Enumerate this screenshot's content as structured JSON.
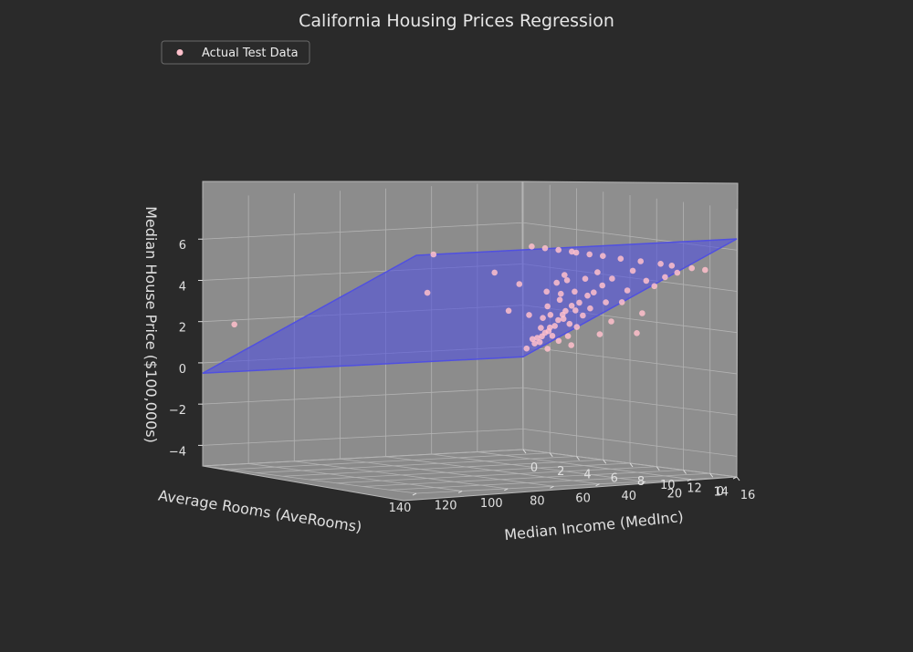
{
  "chart_data": {
    "type": "scatter",
    "title": "California Housing Prices Regression",
    "xlabel": "Median Income (MedInc)",
    "ylabel": "Average Rooms (AveRooms)",
    "zlabel": "Median House Price ($100,000s)",
    "x_ticks": [
      0,
      2,
      4,
      6,
      8,
      10,
      12,
      14,
      16
    ],
    "y_ticks": [
      0,
      20,
      40,
      60,
      80,
      100,
      120,
      140
    ],
    "z_ticks": [
      -4,
      -2,
      0,
      2,
      4,
      6
    ],
    "xlim": [
      0,
      16
    ],
    "ylim": [
      0,
      140
    ],
    "zlim": [
      -5,
      8
    ],
    "grid": true,
    "legend_position": "upper-left",
    "series": [
      {
        "name": "Actual Test Data",
        "color": "#ffc0cb",
        "marker": "circle",
        "note_points": "representative sample of the dense point cloud",
        "points": [
          [
            3.5,
            5.1,
            1.6
          ],
          [
            3.0,
            5.8,
            1.2
          ],
          [
            4.2,
            6.0,
            2.1
          ],
          [
            2.2,
            4.6,
            0.7
          ],
          [
            5.3,
            6.4,
            2.6
          ],
          [
            6.0,
            6.9,
            3.0
          ],
          [
            2.8,
            5.2,
            1.0
          ],
          [
            3.9,
            5.5,
            1.9
          ],
          [
            4.7,
            6.2,
            2.4
          ],
          [
            1.9,
            4.9,
            0.6
          ],
          [
            2.5,
            5.0,
            0.9
          ],
          [
            3.3,
            5.4,
            1.3
          ],
          [
            4.0,
            5.7,
            1.7
          ],
          [
            5.0,
            6.3,
            2.2
          ],
          [
            6.5,
            7.1,
            3.2
          ],
          [
            7.2,
            7.4,
            3.6
          ],
          [
            8.0,
            7.8,
            4.0
          ],
          [
            2.0,
            4.4,
            0.4
          ],
          [
            1.6,
            4.3,
            0.3
          ],
          [
            3.1,
            5.3,
            0.8
          ],
          [
            4.5,
            6.0,
            1.5
          ],
          [
            5.6,
            6.6,
            2.0
          ],
          [
            3.7,
            5.6,
            2.6
          ],
          [
            2.7,
            5.1,
            2.2
          ],
          [
            4.9,
            6.1,
            3.1
          ],
          [
            3.4,
            5.2,
            3.4
          ],
          [
            2.3,
            4.8,
            1.6
          ],
          [
            5.8,
            6.7,
            3.8
          ],
          [
            4.4,
            6.1,
            0.9
          ],
          [
            6.2,
            6.9,
            2.4
          ],
          [
            1.4,
            4.1,
            0.5
          ],
          [
            2.9,
            5.0,
            1.8
          ],
          [
            3.8,
            5.7,
            2.9
          ],
          [
            4.3,
            5.9,
            3.6
          ],
          [
            5.1,
            6.3,
            1.4
          ],
          [
            7.5,
            7.6,
            2.8
          ],
          [
            6.8,
            7.2,
            4.2
          ],
          [
            2.1,
            4.5,
            1.1
          ],
          [
            3.6,
            5.5,
            0.6
          ],
          [
            2.6,
            4.9,
            2.9
          ],
          [
            5.0,
            6.0,
            5.0
          ],
          [
            1.5,
            5.0,
            5.0
          ],
          [
            2.5,
            5.0,
            5.0
          ],
          [
            3.5,
            5.0,
            5.0
          ],
          [
            4.5,
            5.0,
            5.0
          ],
          [
            6.0,
            6.0,
            5.0
          ],
          [
            7.0,
            6.0,
            5.0
          ],
          [
            8.5,
            7.0,
            5.0
          ],
          [
            10.0,
            7.0,
            5.0
          ],
          [
            11.5,
            7.0,
            5.0
          ],
          [
            12.5,
            8.0,
            5.0
          ],
          [
            14.0,
            8.0,
            5.0
          ],
          [
            15.0,
            8.0,
            5.0
          ],
          [
            9.5,
            7.5,
            4.5
          ],
          [
            10.5,
            7.5,
            4.1
          ],
          [
            11.2,
            8.0,
            3.9
          ],
          [
            12.0,
            8.0,
            4.4
          ],
          [
            9.0,
            7.0,
            3.5
          ],
          [
            8.6,
            7.0,
            2.9
          ],
          [
            10.2,
            7.5,
            2.5
          ],
          [
            13.0,
            8.5,
            4.7
          ],
          [
            7.8,
            7.0,
            1.9
          ],
          [
            9.8,
            7.5,
            1.5
          ],
          [
            6.9,
            6.8,
            1.2
          ],
          [
            2.0,
            18.0,
            2.0
          ],
          [
            1.0,
            45.0,
            4.8
          ],
          [
            1.4,
            50.0,
            3.0
          ],
          [
            1.0,
            132.0,
            1.9
          ],
          [
            3.0,
            30.0,
            4.0
          ],
          [
            4.0,
            25.0,
            3.5
          ],
          [
            2.5,
            12.0,
            1.8
          ],
          [
            5.5,
            14.0,
            4.0
          ],
          [
            3.2,
            8.0,
            0.2
          ],
          [
            4.8,
            7.0,
            0.5
          ],
          [
            1.8,
            9.0,
            0.1
          ]
        ]
      }
    ],
    "regression_plane": {
      "color": "#5050e0",
      "intercept": -0.5,
      "coef_medinc": 0.44,
      "coef_averooms": 0.0
    }
  }
}
